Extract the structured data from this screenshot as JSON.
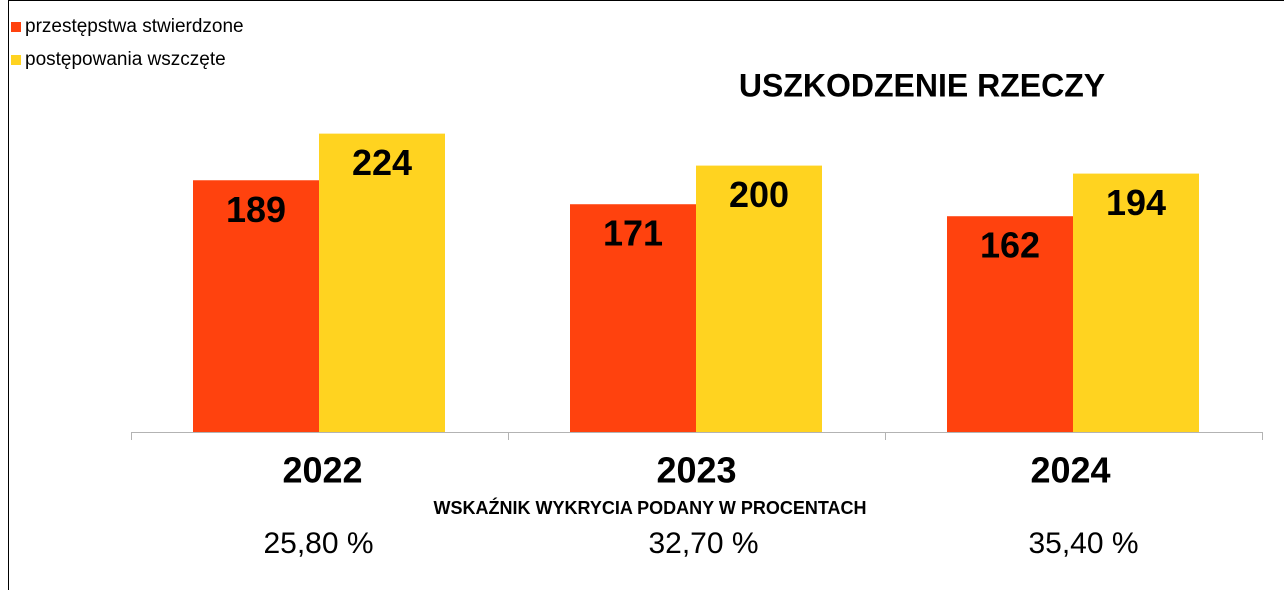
{
  "chart_data": {
    "type": "bar",
    "title": "USZKODZENIE RZECZY",
    "categories": [
      "2022",
      "2023",
      "2024"
    ],
    "series": [
      {
        "name": "przestępstwa stwierdzone",
        "color": "#ff420e",
        "values": [
          189,
          171,
          162
        ]
      },
      {
        "name": "postępowania wszczęte",
        "color": "#ffd320",
        "values": [
          224,
          200,
          194
        ]
      }
    ],
    "ylim": [
      0,
      250
    ],
    "legend": "top-left",
    "annotations": {
      "title": "WSKAŹNIK WYKRYCIA PODANY W PROCENTACH",
      "items": [
        "25,80 %",
        "32,70 %",
        "35,40 %"
      ]
    }
  }
}
